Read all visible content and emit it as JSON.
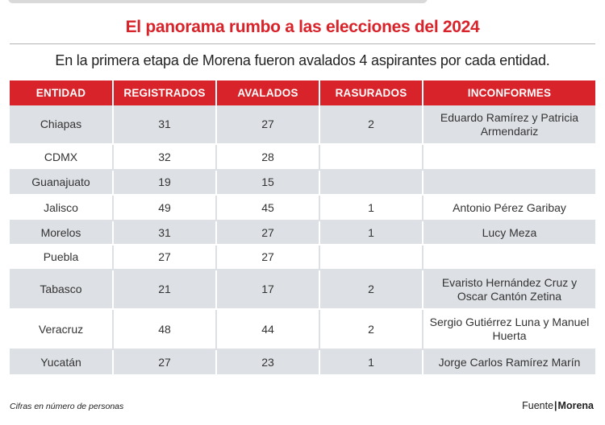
{
  "title": "El panorama rumbo a las elecciones del 2024",
  "subtitle": "En la primera etapa de Morena fueron avalados 4 aspirantes por cada entidad.",
  "footer_note": "Cifras en número de personas",
  "source": {
    "label": "Fuente",
    "separator": "|",
    "name": "Morena"
  },
  "colors": {
    "header_bg": "#d9232a",
    "title": "#d9232a",
    "row_alt": "#dde0e4"
  },
  "chart_data": {
    "type": "table",
    "title": "El panorama rumbo a las elecciones del 2024",
    "subtitle": "En la primera etapa de Morena fueron avalados 4 aspirantes por cada entidad.",
    "columns": [
      "ENTIDAD",
      "REGISTRADOS",
      "AVALADOS",
      "RASURADOS",
      "INCONFORMES"
    ],
    "rows": [
      {
        "entidad": "Chiapas",
        "registrados": "31",
        "avalados": "27",
        "rasurados": "2",
        "inconformes": "Eduardo Ramírez y Patricia Armendariz"
      },
      {
        "entidad": "CDMX",
        "registrados": "32",
        "avalados": "28",
        "rasurados": "",
        "inconformes": ""
      },
      {
        "entidad": "Guanajuato",
        "registrados": "19",
        "avalados": "15",
        "rasurados": "",
        "inconformes": ""
      },
      {
        "entidad": "Jalisco",
        "registrados": "49",
        "avalados": "45",
        "rasurados": "1",
        "inconformes": "Antonio Pérez Garibay"
      },
      {
        "entidad": "Morelos",
        "registrados": "31",
        "avalados": "27",
        "rasurados": "1",
        "inconformes": "Lucy Meza"
      },
      {
        "entidad": "Puebla",
        "registrados": "27",
        "avalados": "27",
        "rasurados": "",
        "inconformes": ""
      },
      {
        "entidad": "Tabasco",
        "registrados": "21",
        "avalados": "17",
        "rasurados": "2",
        "inconformes": "Evaristo Hernández Cruz y Oscar Cantón Zetina"
      },
      {
        "entidad": "Veracruz",
        "registrados": "48",
        "avalados": "44",
        "rasurados": "2",
        "inconformes": "Sergio Gutiérrez Luna y Manuel Huerta"
      },
      {
        "entidad": "Yucatán",
        "registrados": "27",
        "avalados": "23",
        "rasurados": "1",
        "inconformes": "Jorge Carlos Ramírez Marín"
      }
    ]
  }
}
